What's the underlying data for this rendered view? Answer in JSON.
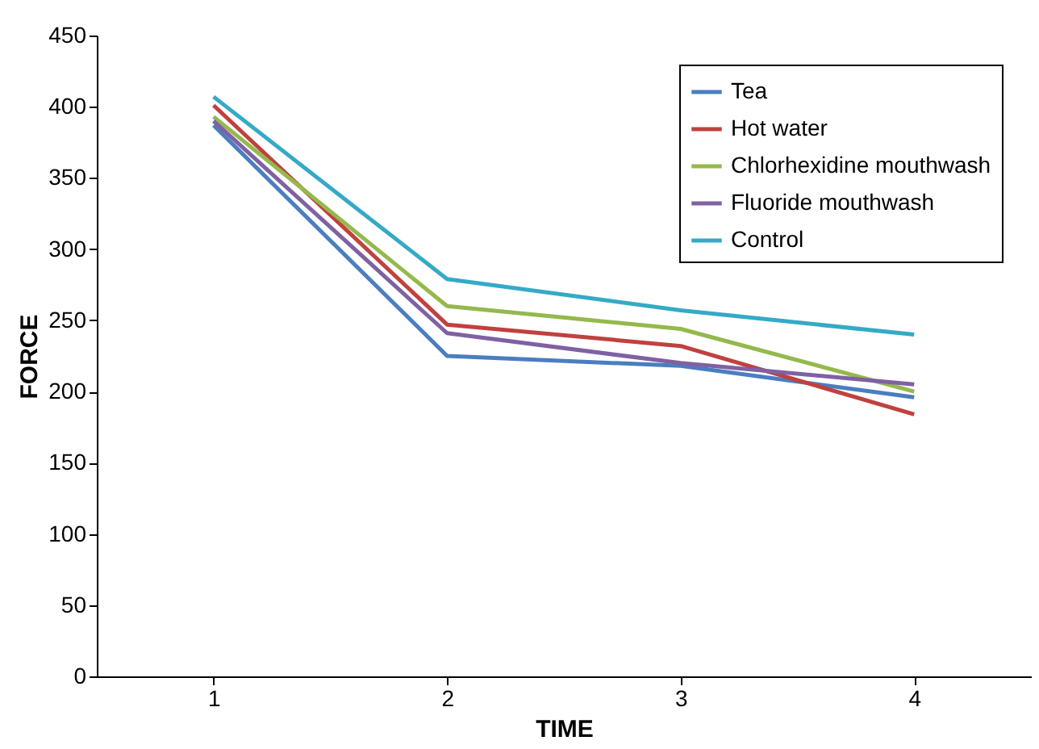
{
  "chart_data": {
    "type": "line",
    "xlabel": "TIME",
    "ylabel": "FORCE",
    "categories": [
      "1",
      "2",
      "3",
      "4"
    ],
    "ylim": [
      0,
      450
    ],
    "yticks": [
      0,
      50,
      100,
      150,
      200,
      250,
      300,
      350,
      400,
      450
    ],
    "grid": false,
    "legend": "top right",
    "marker": "none",
    "line_style": "solid",
    "series": [
      {
        "name": "Tea",
        "color": "#4a7ebf",
        "values": [
          387,
          225,
          218,
          196
        ]
      },
      {
        "name": "Hot water",
        "color": "#c0413e",
        "values": [
          401,
          247,
          232,
          184
        ]
      },
      {
        "name": "Chlorhexidine mouthwash",
        "color": "#94b94c",
        "values": [
          393,
          260,
          244,
          200
        ]
      },
      {
        "name": "Fluoride mouthwash",
        "color": "#7f61a3",
        "values": [
          390,
          241,
          220,
          205
        ]
      },
      {
        "name": "Control",
        "color": "#34aac6",
        "values": [
          407,
          279,
          257,
          240
        ]
      }
    ]
  }
}
